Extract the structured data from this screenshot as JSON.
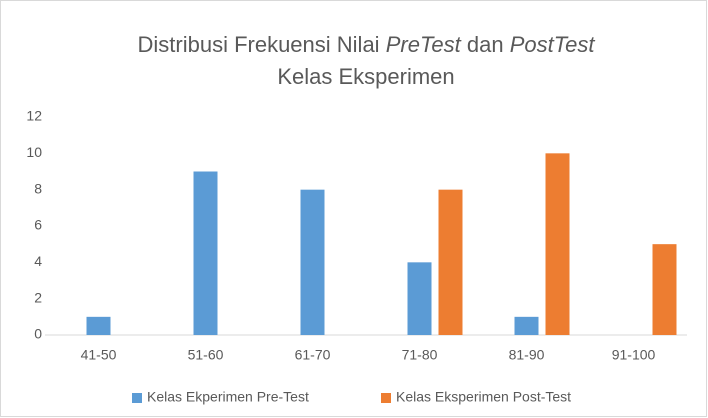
{
  "chart_data": {
    "type": "bar",
    "title": [
      [
        "Distribusi Frekuensi Nilai",
        "PreTest",
        "dan",
        "PostTest"
      ],
      [
        "Kelas Eksperimen"
      ]
    ],
    "categories": [
      "41-50",
      "51-60",
      "61-70",
      "71-80",
      "81-90",
      "91-100"
    ],
    "series": [
      {
        "name": "Kelas Ekperimen Pre-Test",
        "color": "#5b9bd5",
        "values": [
          1,
          9,
          8,
          4,
          1,
          null
        ]
      },
      {
        "name": "Kelas Eksperimen Post-Test",
        "color": "#ed7d31",
        "values": [
          null,
          null,
          null,
          8,
          10,
          5
        ]
      }
    ],
    "ylim": [
      0,
      12
    ],
    "yticks": [
      0,
      2,
      4,
      6,
      8,
      10,
      12
    ],
    "grid": false,
    "legend": "bottom"
  }
}
